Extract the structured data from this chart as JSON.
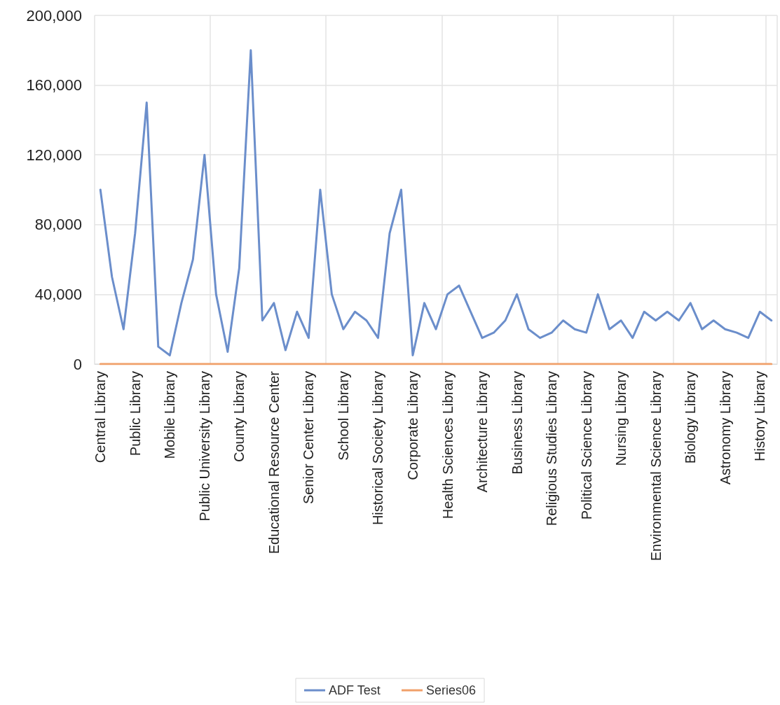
{
  "chart_data": {
    "type": "line",
    "categories": [
      "Central Library",
      null,
      null,
      "Public Library",
      null,
      null,
      "Mobile Library",
      null,
      null,
      "Public University Library",
      null,
      null,
      "County Library",
      null,
      null,
      "Educational Resource Center",
      null,
      null,
      "Senior Center Library",
      null,
      null,
      "School Library",
      null,
      null,
      "Historical Society Library",
      null,
      null,
      "Corporate Library",
      null,
      null,
      "Health Sciences Library",
      null,
      null,
      "Architecture Library",
      null,
      null,
      "Business Library",
      null,
      null,
      "Religious Studies Library",
      null,
      null,
      "Political Science Library",
      null,
      null,
      "Nursing Library",
      null,
      null,
      "Environmental Science Library",
      null,
      null,
      "Biology Library",
      null,
      null,
      "Astronomy Library",
      null,
      null,
      "History Library",
      null
    ],
    "series": [
      {
        "name": "ADF Test",
        "color": "#6b8ecb",
        "values": [
          100000,
          50000,
          20000,
          75000,
          150000,
          10000,
          5000,
          35000,
          60000,
          120000,
          40000,
          7000,
          55000,
          180000,
          25000,
          35000,
          8000,
          30000,
          15000,
          100000,
          40000,
          20000,
          30000,
          25000,
          15000,
          75000,
          100000,
          5000,
          35000,
          20000,
          40000,
          45000,
          30000,
          15000,
          18000,
          25000,
          40000,
          20000,
          15000,
          18000,
          25000,
          20000,
          18000,
          40000,
          20000,
          25000,
          15000,
          30000,
          25000,
          30000,
          25000,
          35000,
          20000,
          25000,
          20000,
          18000,
          15000,
          30000,
          25000
        ]
      },
      {
        "name": "Series06",
        "color": "#f0a06a",
        "values": [
          0,
          0,
          0,
          0,
          0,
          0,
          0,
          0,
          0,
          0,
          0,
          0,
          0,
          0,
          0,
          0,
          0,
          0,
          0,
          0,
          0,
          0,
          0,
          0,
          0,
          0,
          0,
          0,
          0,
          0,
          0,
          0,
          0,
          0,
          0,
          0,
          0,
          0,
          0,
          0,
          0,
          0,
          0,
          0,
          0,
          0,
          0,
          0,
          0,
          0,
          0,
          0,
          0,
          0,
          0,
          0,
          0,
          0,
          0
        ]
      }
    ],
    "ylim": [
      0,
      200000
    ],
    "yticks": [
      0,
      {
        "value": 40000,
        "label": "40,000"
      },
      {
        "value": 80000,
        "label": "80,000"
      },
      {
        "value": 120000,
        "label": "120,000"
      },
      {
        "value": 160000,
        "label": "160,000"
      },
      {
        "value": 200000,
        "label": "200,000"
      }
    ],
    "grid": true,
    "legend": "bottom",
    "marker": "none",
    "line_style": "solid"
  }
}
